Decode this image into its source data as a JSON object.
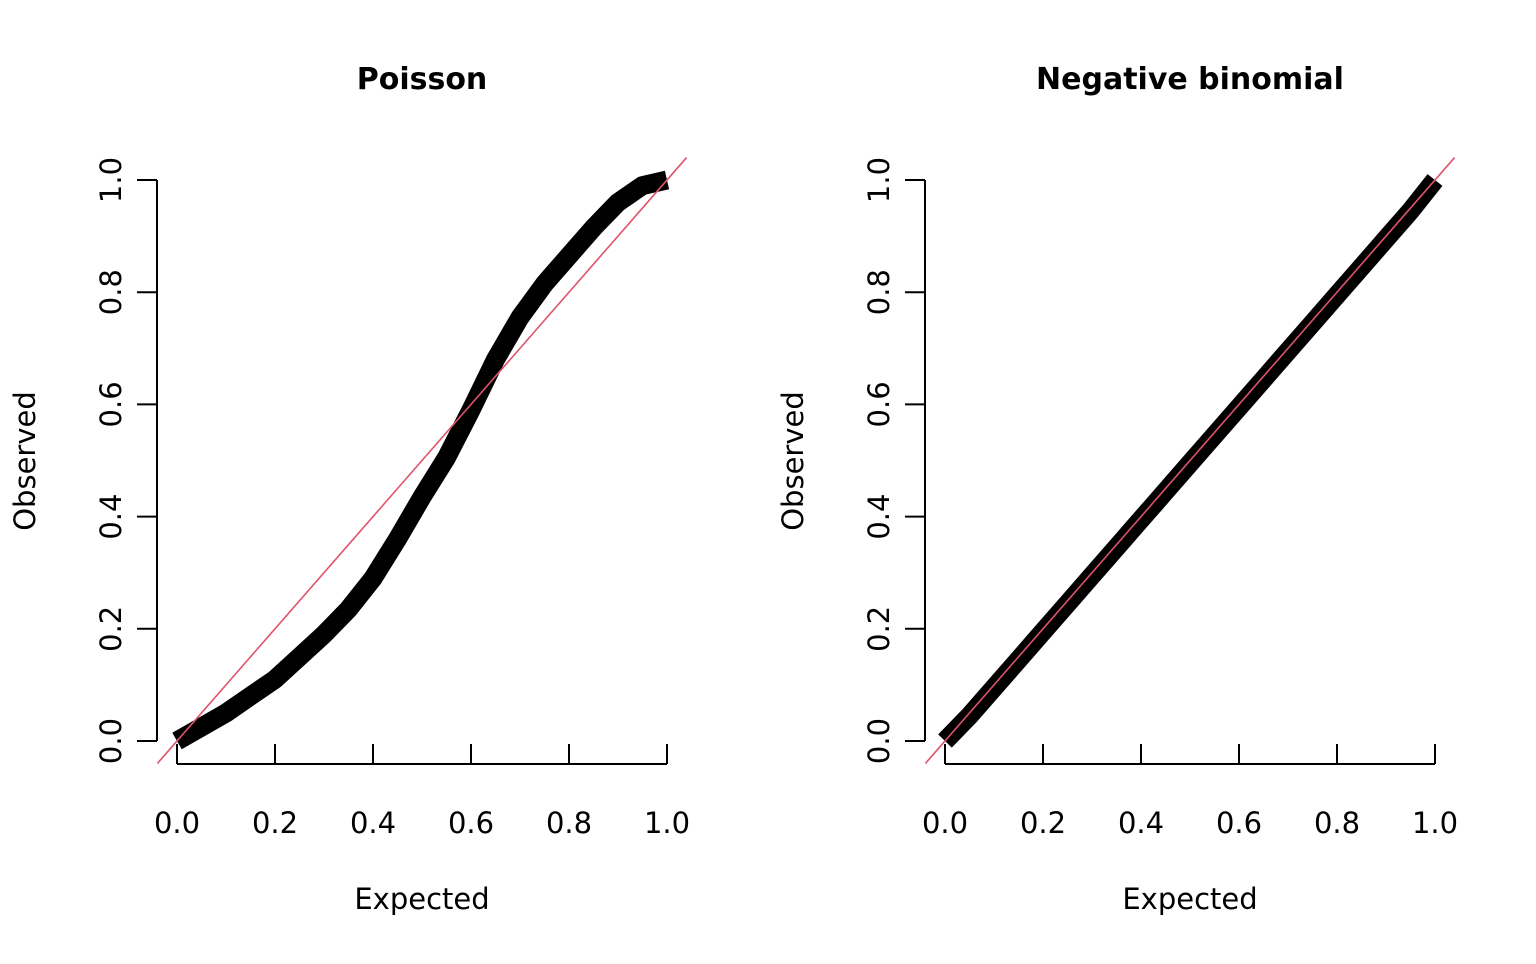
{
  "chart_data": [
    {
      "type": "line",
      "title": "Poisson",
      "xlabel": "Expected",
      "ylabel": "Observed",
      "xlim": [
        0,
        1
      ],
      "ylim": [
        0,
        1
      ],
      "x_ticks": [
        "0.0",
        "0.2",
        "0.4",
        "0.6",
        "0.8",
        "1.0"
      ],
      "y_ticks": [
        "0.0",
        "0.2",
        "0.4",
        "0.6",
        "0.8",
        "1.0"
      ],
      "grid": false,
      "reference_line": {
        "slope": 1,
        "intercept": 0,
        "color": "#DF536B"
      },
      "series": [
        {
          "x": [
            0.0,
            0.05,
            0.1,
            0.15,
            0.2,
            0.25,
            0.3,
            0.35,
            0.4,
            0.45,
            0.5,
            0.55,
            0.6,
            0.65,
            0.7,
            0.75,
            0.8,
            0.85,
            0.9,
            0.95,
            1.0
          ],
          "y": [
            0.0,
            0.025,
            0.05,
            0.08,
            0.11,
            0.15,
            0.19,
            0.235,
            0.29,
            0.36,
            0.435,
            0.505,
            0.59,
            0.68,
            0.755,
            0.815,
            0.865,
            0.915,
            0.96,
            0.99,
            1.0
          ]
        }
      ]
    },
    {
      "type": "line",
      "title": "Negative binomial",
      "xlabel": "Expected",
      "ylabel": "Observed",
      "xlim": [
        0,
        1
      ],
      "ylim": [
        0,
        1
      ],
      "x_ticks": [
        "0.0",
        "0.2",
        "0.4",
        "0.6",
        "0.8",
        "1.0"
      ],
      "y_ticks": [
        "0.0",
        "0.2",
        "0.4",
        "0.6",
        "0.8",
        "1.0"
      ],
      "grid": false,
      "reference_line": {
        "slope": 1,
        "intercept": 0,
        "color": "#DF536B"
      },
      "series": [
        {
          "x": [
            0.0,
            0.05,
            0.1,
            0.15,
            0.2,
            0.25,
            0.3,
            0.35,
            0.4,
            0.45,
            0.5,
            0.55,
            0.6,
            0.65,
            0.7,
            0.75,
            0.8,
            0.85,
            0.9,
            0.95,
            1.0
          ],
          "y": [
            0.0,
            0.045,
            0.095,
            0.145,
            0.195,
            0.245,
            0.295,
            0.345,
            0.395,
            0.445,
            0.495,
            0.545,
            0.595,
            0.645,
            0.695,
            0.745,
            0.795,
            0.845,
            0.895,
            0.945,
            1.0
          ]
        }
      ]
    }
  ]
}
